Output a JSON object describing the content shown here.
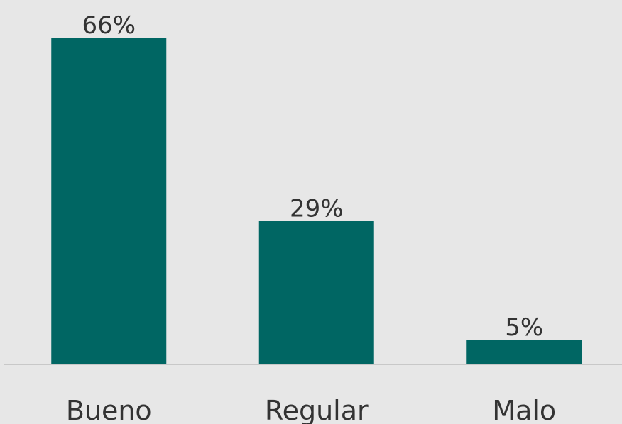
{
  "chart_data": {
    "type": "bar",
    "categories": [
      "Bueno",
      "Regular",
      "Malo"
    ],
    "values": [
      66,
      29,
      5
    ],
    "value_labels": [
      "66%",
      "29%",
      "5%"
    ],
    "color": "#006663"
  }
}
